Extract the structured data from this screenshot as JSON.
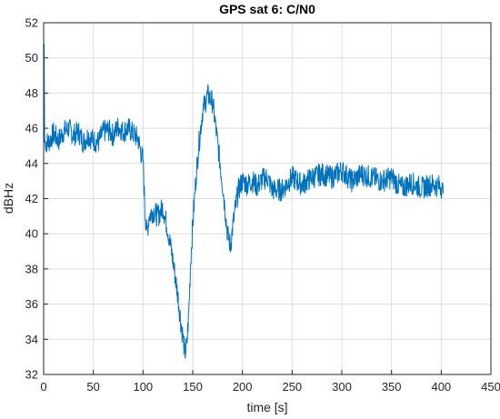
{
  "chart_data": {
    "type": "line",
    "title": "GPS sat 6: C/N0",
    "xlabel": "time [s]",
    "ylabel": "dBHz",
    "xlim": [
      0,
      450
    ],
    "ylim": [
      32,
      52
    ],
    "xticks": [
      0,
      50,
      100,
      150,
      200,
      250,
      300,
      350,
      400,
      450
    ],
    "yticks": [
      32,
      34,
      36,
      38,
      40,
      42,
      44,
      46,
      48,
      50,
      52
    ],
    "grid": true,
    "line_color": "#0072BD",
    "series": [
      {
        "x": [
          0,
          0.5,
          1,
          5,
          10,
          15,
          20,
          25,
          30,
          35,
          40,
          45,
          50,
          55,
          60,
          65,
          70,
          75,
          80,
          85,
          90,
          95,
          98,
          100,
          102,
          104,
          106,
          110,
          115,
          120,
          125,
          130,
          135,
          138,
          140,
          142,
          144,
          146,
          148,
          150,
          153,
          156,
          160,
          165,
          170,
          175,
          180,
          185,
          188,
          190,
          193,
          196,
          200,
          205,
          210,
          215,
          220,
          225,
          230,
          240,
          250,
          260,
          270,
          280,
          290,
          300,
          310,
          320,
          330,
          340,
          350,
          360,
          370,
          380,
          390,
          400,
          402
        ],
        "y": [
          44.8,
          50.8,
          45.2,
          45.2,
          45.7,
          45.3,
          45.8,
          46.0,
          45.6,
          45.8,
          45.2,
          45.6,
          45.3,
          45.2,
          45.8,
          45.9,
          45.6,
          46.1,
          45.8,
          46.0,
          45.7,
          45.4,
          44.6,
          44.2,
          41.2,
          40.0,
          41.0,
          41.3,
          41.0,
          41.5,
          40.2,
          38.5,
          36.5,
          35.0,
          34.2,
          33.2,
          33.6,
          35.5,
          38.5,
          40.5,
          43.0,
          45.0,
          47.0,
          47.9,
          47.5,
          45.2,
          42.8,
          40.0,
          39.3,
          40.3,
          41.5,
          42.5,
          43.0,
          42.8,
          43.0,
          42.7,
          43.1,
          43.2,
          42.5,
          42.5,
          43.2,
          42.8,
          43.2,
          43.4,
          43.2,
          43.6,
          43.0,
          43.4,
          43.2,
          43.0,
          43.2,
          42.6,
          42.9,
          42.6,
          42.8,
          42.7,
          42.3
        ]
      }
    ]
  }
}
